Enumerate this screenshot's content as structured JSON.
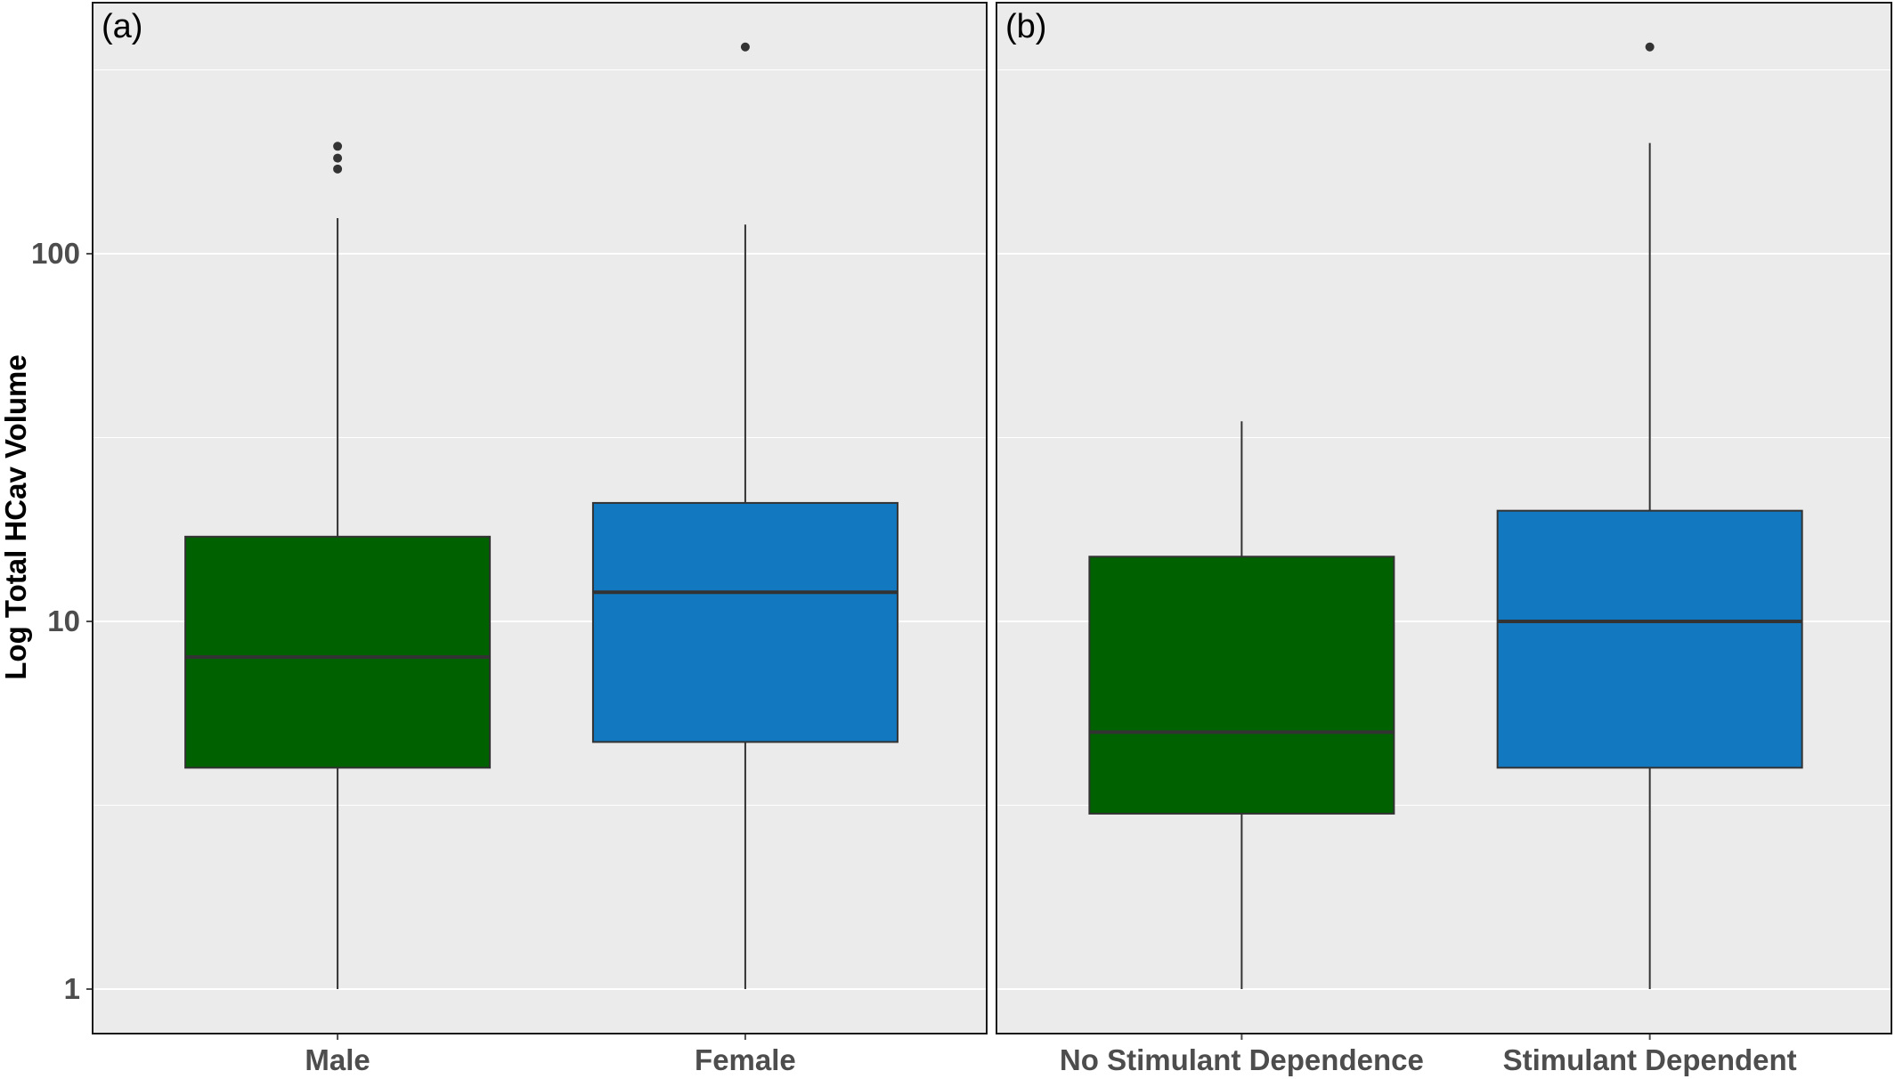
{
  "colors": {
    "panel_background": "#ebebeb",
    "gridline": "#ffffff",
    "box_outline": "#333333",
    "whisker": "#333333",
    "outlier": "#333333",
    "panel_border": "#1a1a1a",
    "tick_label": "#4d4d4d"
  },
  "chart_data": {
    "type": "boxplot",
    "ylabel": "Log Total HCav Volume",
    "y_scale": "log10",
    "ylim": [
      0.75,
      500
    ],
    "y_ticks": [
      1,
      10,
      100
    ],
    "y_tick_labels": [
      "1",
      "10",
      "100"
    ],
    "grid": true,
    "panels": [
      {
        "tag": "(a)",
        "categories": [
          "Male",
          "Female"
        ],
        "boxes": [
          {
            "category": "Male",
            "color": "#006100",
            "whisker_low": 1,
            "q1": 4,
            "median": 8,
            "q3": 17,
            "whisker_high": 125,
            "outliers": [
              170,
              182,
              196
            ]
          },
          {
            "category": "Female",
            "color": "#1279c0",
            "whisker_low": 1,
            "q1": 4.7,
            "median": 12,
            "q3": 21,
            "whisker_high": 120,
            "outliers": [
              365
            ]
          }
        ]
      },
      {
        "tag": "(b)",
        "categories": [
          "No Stimulant Dependence",
          "Stimulant Dependent"
        ],
        "boxes": [
          {
            "category": "No Stimulant Dependence",
            "color": "#006100",
            "whisker_low": 1,
            "q1": 3,
            "median": 5,
            "q3": 15,
            "whisker_high": 35,
            "outliers": []
          },
          {
            "category": "Stimulant Dependent",
            "color": "#1279c0",
            "whisker_low": 1,
            "q1": 4,
            "median": 10,
            "q3": 20,
            "whisker_high": 200,
            "outliers": [
              365
            ]
          }
        ]
      }
    ]
  }
}
